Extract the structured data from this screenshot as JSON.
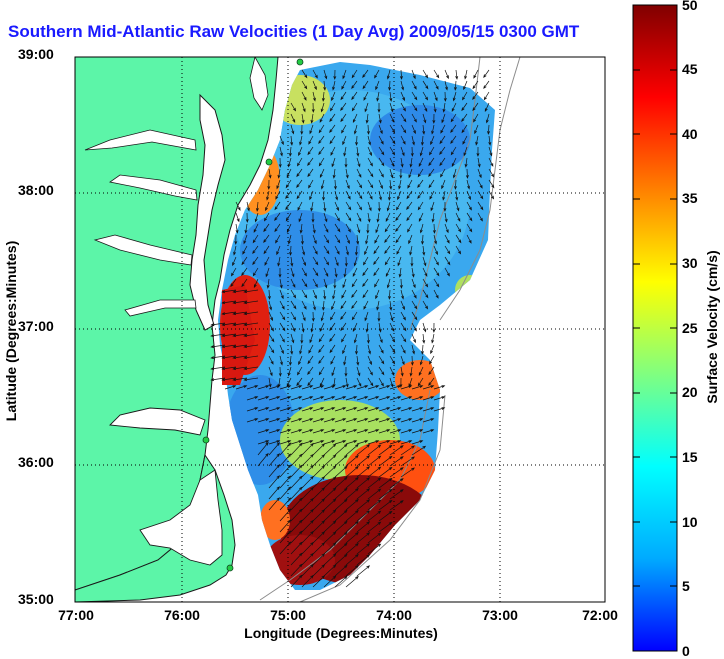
{
  "title": "Southern Mid-Atlantic Raw Velocities (1 Day Avg) 2009/05/15 0300 GMT",
  "axes": {
    "xlabel": "Longitude (Degrees:Minutes)",
    "ylabel": "Latitude (Degrees:Minutes)",
    "xticks": [
      "77:00",
      "76:00",
      "75:00",
      "74:00",
      "73:00",
      "72:00"
    ],
    "yticks": [
      "39:00",
      "38:00",
      "37:00",
      "36:00",
      "35:00"
    ],
    "grid": true
  },
  "colorbar": {
    "label": "Surface Velocity (cm/s)",
    "ticks": [
      "50",
      "45",
      "40",
      "35",
      "30",
      "25",
      "20",
      "15",
      "10",
      "5",
      "0"
    ],
    "min": 0,
    "max": 50,
    "colors": [
      "#0000ff",
      "#00aaff",
      "#00ffff",
      "#80ff80",
      "#ffff00",
      "#ff8000",
      "#ff0000",
      "#800000"
    ]
  },
  "colors": {
    "land": "#5cf5a8",
    "title": "#1a1aff",
    "coast": "#1a1a1a",
    "bathymetry": "#8c8c8c"
  }
}
